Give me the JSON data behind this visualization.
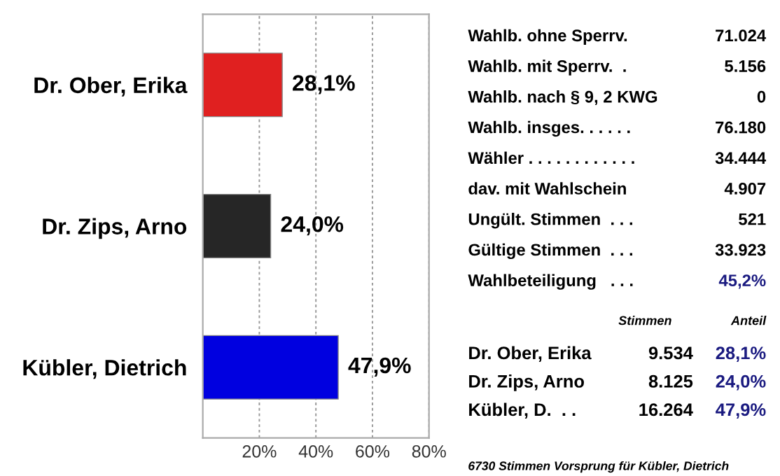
{
  "chart_data": [
    {
      "type": "bar",
      "orientation": "horizontal",
      "categories": [
        "Dr. Ober, Erika",
        "Dr. Zips, Arno",
        "Kübler, Dietrich"
      ],
      "values": [
        28.1,
        24.0,
        47.9
      ],
      "colors": [
        "#e02020",
        "#262626",
        "#0000e0"
      ],
      "value_labels": [
        "28,1%",
        "24,0%",
        "47,9%"
      ],
      "xlim": [
        0,
        80
      ],
      "xticks": [
        {
          "value": 20,
          "label": "20%"
        },
        {
          "value": 40,
          "label": "40%"
        },
        {
          "value": 60,
          "label": "60%"
        },
        {
          "value": 80,
          "label": "80%"
        }
      ],
      "grid": "x"
    },
    {
      "type": "other",
      "annotations": [
        "Wahlb. ohne Sperrv.",
        "71.024",
        "Wahlb. mit Sperrv.  .",
        "5.156",
        "Wahlb. nach § 9, 2 KWG",
        "0",
        "Wahlb. insges. . . . . .",
        "76.180",
        "Wähler . . . . . . . . . . . .",
        "34.444",
        "dav. mit Wahlschein",
        "4.907",
        "Ungült. Stimmen  . . .",
        "521",
        "Gültige Stimmen  . . .",
        "33.923",
        "Wahlbeteiligung   . . .",
        "45,2%",
        "Stimmen",
        "Anteil",
        "Dr. Ober, Erika",
        "9.534",
        "28,1%",
        "Dr. Zips, Arno",
        "8.125",
        "24,0%",
        "Kübler, D.  . .",
        "16.264",
        "47,9%",
        "6730 Stimmen Vorsprung für Kübler, Dietrich"
      ]
    }
  ]
}
